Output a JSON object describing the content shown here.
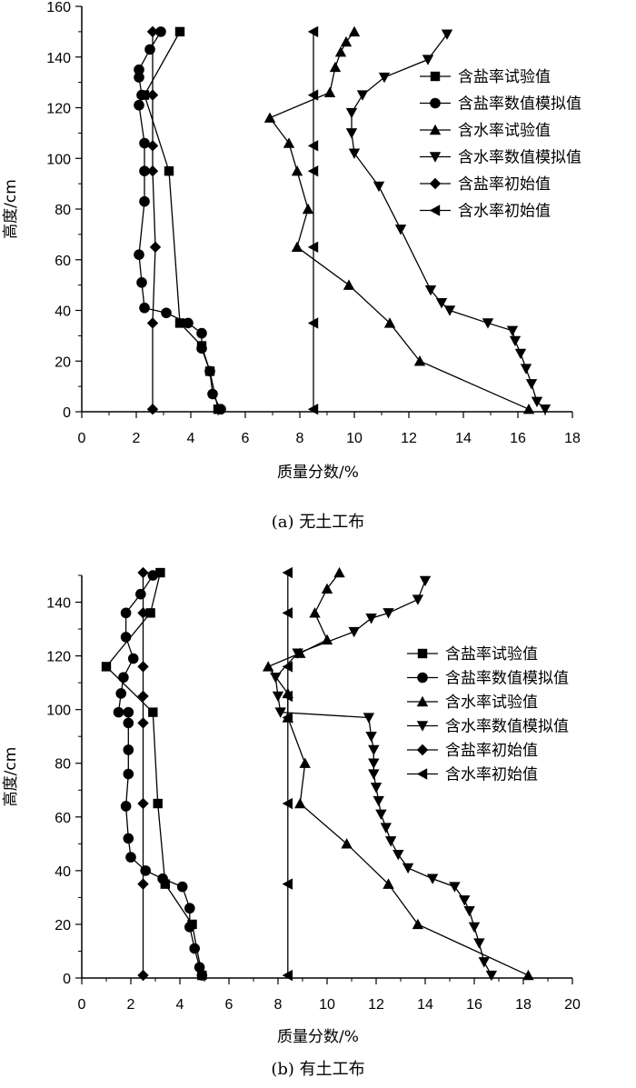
{
  "chart_data": [
    {
      "type": "line",
      "caption": "(a) 无土工布",
      "xlabel": "质量分数/%",
      "ylabel": "高度/cm",
      "xlim": [
        0,
        18
      ],
      "ylim": [
        0,
        160
      ],
      "xticks": [
        0,
        2,
        4,
        6,
        8,
        10,
        12,
        14,
        16,
        18
      ],
      "yticks": [
        0,
        20,
        40,
        60,
        80,
        100,
        120,
        140,
        160
      ],
      "legend_position": "top-right",
      "series": [
        {
          "name": "含盐率试验值",
          "marker": "square",
          "points": [
            [
              5.0,
              1
            ],
            [
              4.7,
              16
            ],
            [
              4.4,
              26
            ],
            [
              3.6,
              35
            ],
            [
              3.2,
              95
            ],
            [
              2.3,
              125
            ],
            [
              3.6,
              150
            ]
          ]
        },
        {
          "name": "含盐率数值模拟值",
          "marker": "circle",
          "points": [
            [
              5.1,
              1
            ],
            [
              4.8,
              7
            ],
            [
              4.7,
              16
            ],
            [
              4.4,
              25
            ],
            [
              4.4,
              31
            ],
            [
              3.9,
              35
            ],
            [
              3.1,
              39
            ],
            [
              2.3,
              41
            ],
            [
              2.2,
              51
            ],
            [
              2.1,
              62
            ],
            [
              2.3,
              83
            ],
            [
              2.3,
              95
            ],
            [
              2.3,
              106
            ],
            [
              2.1,
              121
            ],
            [
              2.2,
              125
            ],
            [
              2.1,
              132
            ],
            [
              2.1,
              135
            ],
            [
              2.5,
              143
            ],
            [
              2.9,
              150
            ]
          ]
        },
        {
          "name": "含水率试验值",
          "marker": "triangle-up",
          "points": [
            [
              16.4,
              1
            ],
            [
              12.4,
              20
            ],
            [
              11.3,
              35
            ],
            [
              9.8,
              50
            ],
            [
              7.9,
              65
            ],
            [
              8.3,
              80
            ],
            [
              7.9,
              95
            ],
            [
              7.6,
              106
            ],
            [
              6.9,
              116
            ],
            [
              9.1,
              126
            ],
            [
              9.3,
              136
            ],
            [
              9.5,
              142
            ],
            [
              9.7,
              146
            ],
            [
              10.0,
              150
            ]
          ]
        },
        {
          "name": "含水率数值模拟值",
          "marker": "triangle-down",
          "points": [
            [
              17.0,
              1
            ],
            [
              16.7,
              4
            ],
            [
              16.5,
              11
            ],
            [
              16.3,
              17
            ],
            [
              16.1,
              23
            ],
            [
              15.9,
              28
            ],
            [
              15.8,
              32
            ],
            [
              14.9,
              35
            ],
            [
              13.5,
              40
            ],
            [
              13.2,
              43
            ],
            [
              12.8,
              48
            ],
            [
              11.7,
              72
            ],
            [
              10.9,
              89
            ],
            [
              10.0,
              102
            ],
            [
              9.9,
              110
            ],
            [
              9.9,
              118
            ],
            [
              10.3,
              125
            ],
            [
              11.1,
              132
            ],
            [
              12.7,
              139
            ],
            [
              13.4,
              149
            ]
          ]
        },
        {
          "name": "含盐率初始值",
          "marker": "diamond",
          "points": [
            [
              2.6,
              1
            ],
            [
              2.6,
              35
            ],
            [
              2.7,
              65
            ],
            [
              2.6,
              95
            ],
            [
              2.6,
              105
            ],
            [
              2.6,
              125
            ],
            [
              2.6,
              150
            ]
          ]
        },
        {
          "name": "含水率初始值",
          "marker": "triangle-left",
          "points": [
            [
              8.5,
              1
            ],
            [
              8.5,
              35
            ],
            [
              8.5,
              65
            ],
            [
              8.5,
              95
            ],
            [
              8.5,
              105
            ],
            [
              8.5,
              125
            ],
            [
              8.5,
              150
            ]
          ]
        }
      ]
    },
    {
      "type": "line",
      "caption": "(b) 有土工布",
      "xlabel": "质量分数/%",
      "ylabel": "高度/cm",
      "xlim": [
        0,
        20
      ],
      "ylim": [
        0,
        150
      ],
      "xticks": [
        0,
        2,
        4,
        6,
        8,
        10,
        12,
        14,
        16,
        18,
        20
      ],
      "yticks": [
        0,
        20,
        40,
        60,
        80,
        100,
        120,
        140
      ],
      "legend_position": "right",
      "series": [
        {
          "name": "含盐率试验值",
          "marker": "square",
          "points": [
            [
              4.9,
              1
            ],
            [
              4.5,
              20
            ],
            [
              3.4,
              35
            ],
            [
              3.1,
              65
            ],
            [
              2.9,
              99
            ],
            [
              1.0,
              116
            ],
            [
              2.8,
              136
            ],
            [
              3.2,
              151
            ]
          ]
        },
        {
          "name": "含盐率数值模拟值",
          "marker": "circle",
          "points": [
            [
              4.9,
              1
            ],
            [
              4.8,
              4
            ],
            [
              4.6,
              11
            ],
            [
              4.4,
              19
            ],
            [
              4.4,
              26
            ],
            [
              4.1,
              34
            ],
            [
              3.3,
              37
            ],
            [
              2.6,
              40
            ],
            [
              2.0,
              45
            ],
            [
              1.9,
              52
            ],
            [
              1.8,
              64
            ],
            [
              1.9,
              76
            ],
            [
              1.9,
              85
            ],
            [
              1.9,
              95
            ],
            [
              1.9,
              99
            ],
            [
              1.5,
              99
            ],
            [
              1.6,
              106
            ],
            [
              1.7,
              112
            ],
            [
              2.1,
              119
            ],
            [
              1.8,
              127
            ],
            [
              1.8,
              136
            ],
            [
              2.4,
              143
            ],
            [
              2.9,
              150
            ]
          ]
        },
        {
          "name": "含水率试验值",
          "marker": "triangle-up",
          "points": [
            [
              18.2,
              1
            ],
            [
              13.7,
              20
            ],
            [
              12.5,
              35
            ],
            [
              10.8,
              50
            ],
            [
              8.9,
              65
            ],
            [
              9.1,
              80
            ],
            [
              8.4,
              97
            ],
            [
              8.4,
              106
            ],
            [
              7.6,
              116
            ],
            [
              8.9,
              121
            ],
            [
              10.0,
              126
            ],
            [
              9.5,
              136
            ],
            [
              10.0,
              145
            ],
            [
              10.5,
              151
            ]
          ]
        },
        {
          "name": "含水率数值模拟值",
          "marker": "triangle-down",
          "points": [
            [
              16.7,
              1
            ],
            [
              16.4,
              6
            ],
            [
              16.2,
              13
            ],
            [
              16.0,
              19
            ],
            [
              15.8,
              25
            ],
            [
              15.6,
              29
            ],
            [
              15.2,
              34
            ],
            [
              14.3,
              37
            ],
            [
              13.3,
              41
            ],
            [
              12.9,
              46
            ],
            [
              12.6,
              51
            ],
            [
              12.4,
              56
            ],
            [
              12.2,
              61
            ],
            [
              12.1,
              66
            ],
            [
              12.0,
              71
            ],
            [
              11.9,
              76
            ],
            [
              11.9,
              80
            ],
            [
              11.9,
              85
            ],
            [
              11.8,
              90
            ],
            [
              11.7,
              97
            ],
            [
              8.1,
              99
            ],
            [
              8.0,
              105
            ],
            [
              7.9,
              112
            ],
            [
              8.8,
              121
            ],
            [
              11.1,
              129
            ],
            [
              11.8,
              134
            ],
            [
              12.5,
              136
            ],
            [
              13.7,
              141
            ],
            [
              14.0,
              148
            ]
          ]
        },
        {
          "name": "含盐率初始值",
          "marker": "diamond",
          "points": [
            [
              2.5,
              1
            ],
            [
              2.5,
              35
            ],
            [
              2.5,
              65
            ],
            [
              2.5,
              95
            ],
            [
              2.5,
              105
            ],
            [
              2.5,
              116
            ],
            [
              2.5,
              136
            ],
            [
              2.5,
              151
            ]
          ]
        },
        {
          "name": "含水率初始值",
          "marker": "triangle-left",
          "points": [
            [
              8.4,
              1
            ],
            [
              8.4,
              35
            ],
            [
              8.4,
              65
            ],
            [
              8.4,
              97
            ],
            [
              8.4,
              105
            ],
            [
              8.4,
              116
            ],
            [
              8.4,
              136
            ],
            [
              8.4,
              151
            ]
          ]
        }
      ]
    }
  ]
}
